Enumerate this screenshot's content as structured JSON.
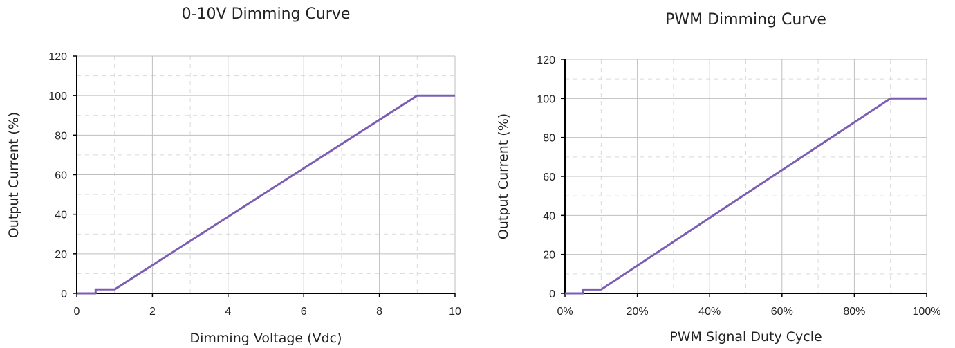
{
  "chart_data": [
    {
      "type": "line",
      "title": "0-10V Dimming Curve",
      "xlabel": "Dimming Voltage (Vdc)",
      "ylabel": "Output Current (%)",
      "xlim": [
        0,
        10
      ],
      "ylim": [
        0,
        120
      ],
      "x_ticks": [
        "0",
        "2",
        "4",
        "6",
        "8",
        "10"
      ],
      "x_tick_values": [
        0,
        2,
        4,
        6,
        8,
        10
      ],
      "y_ticks": [
        "0",
        "20",
        "40",
        "60",
        "80",
        "100",
        "120"
      ],
      "y_tick_values": [
        0,
        20,
        40,
        60,
        80,
        100,
        120
      ],
      "grid": true,
      "line_color": "#7B5EB4",
      "series": [
        {
          "x": [
            0,
            0.5,
            0.5,
            1,
            9,
            10
          ],
          "y": [
            0,
            0,
            2,
            2,
            100,
            100
          ]
        }
      ]
    },
    {
      "type": "line",
      "title": "PWM Dimming Curve",
      "xlabel": "PWM Signal Duty Cycle",
      "ylabel": "Output Current (%)",
      "xlim": [
        0,
        100
      ],
      "ylim": [
        0,
        120
      ],
      "x_ticks": [
        "0%",
        "20%",
        "40%",
        "60%",
        "80%",
        "100%"
      ],
      "x_tick_values": [
        0,
        20,
        40,
        60,
        80,
        100
      ],
      "y_ticks": [
        "0",
        "20",
        "40",
        "60",
        "80",
        "100",
        "120"
      ],
      "y_tick_values": [
        0,
        20,
        40,
        60,
        80,
        100,
        120
      ],
      "grid": true,
      "line_color": "#7B5EB4",
      "series": [
        {
          "x": [
            0,
            5,
            5,
            10,
            90,
            100
          ],
          "y": [
            0,
            0,
            2,
            2,
            100,
            100
          ]
        }
      ]
    }
  ]
}
